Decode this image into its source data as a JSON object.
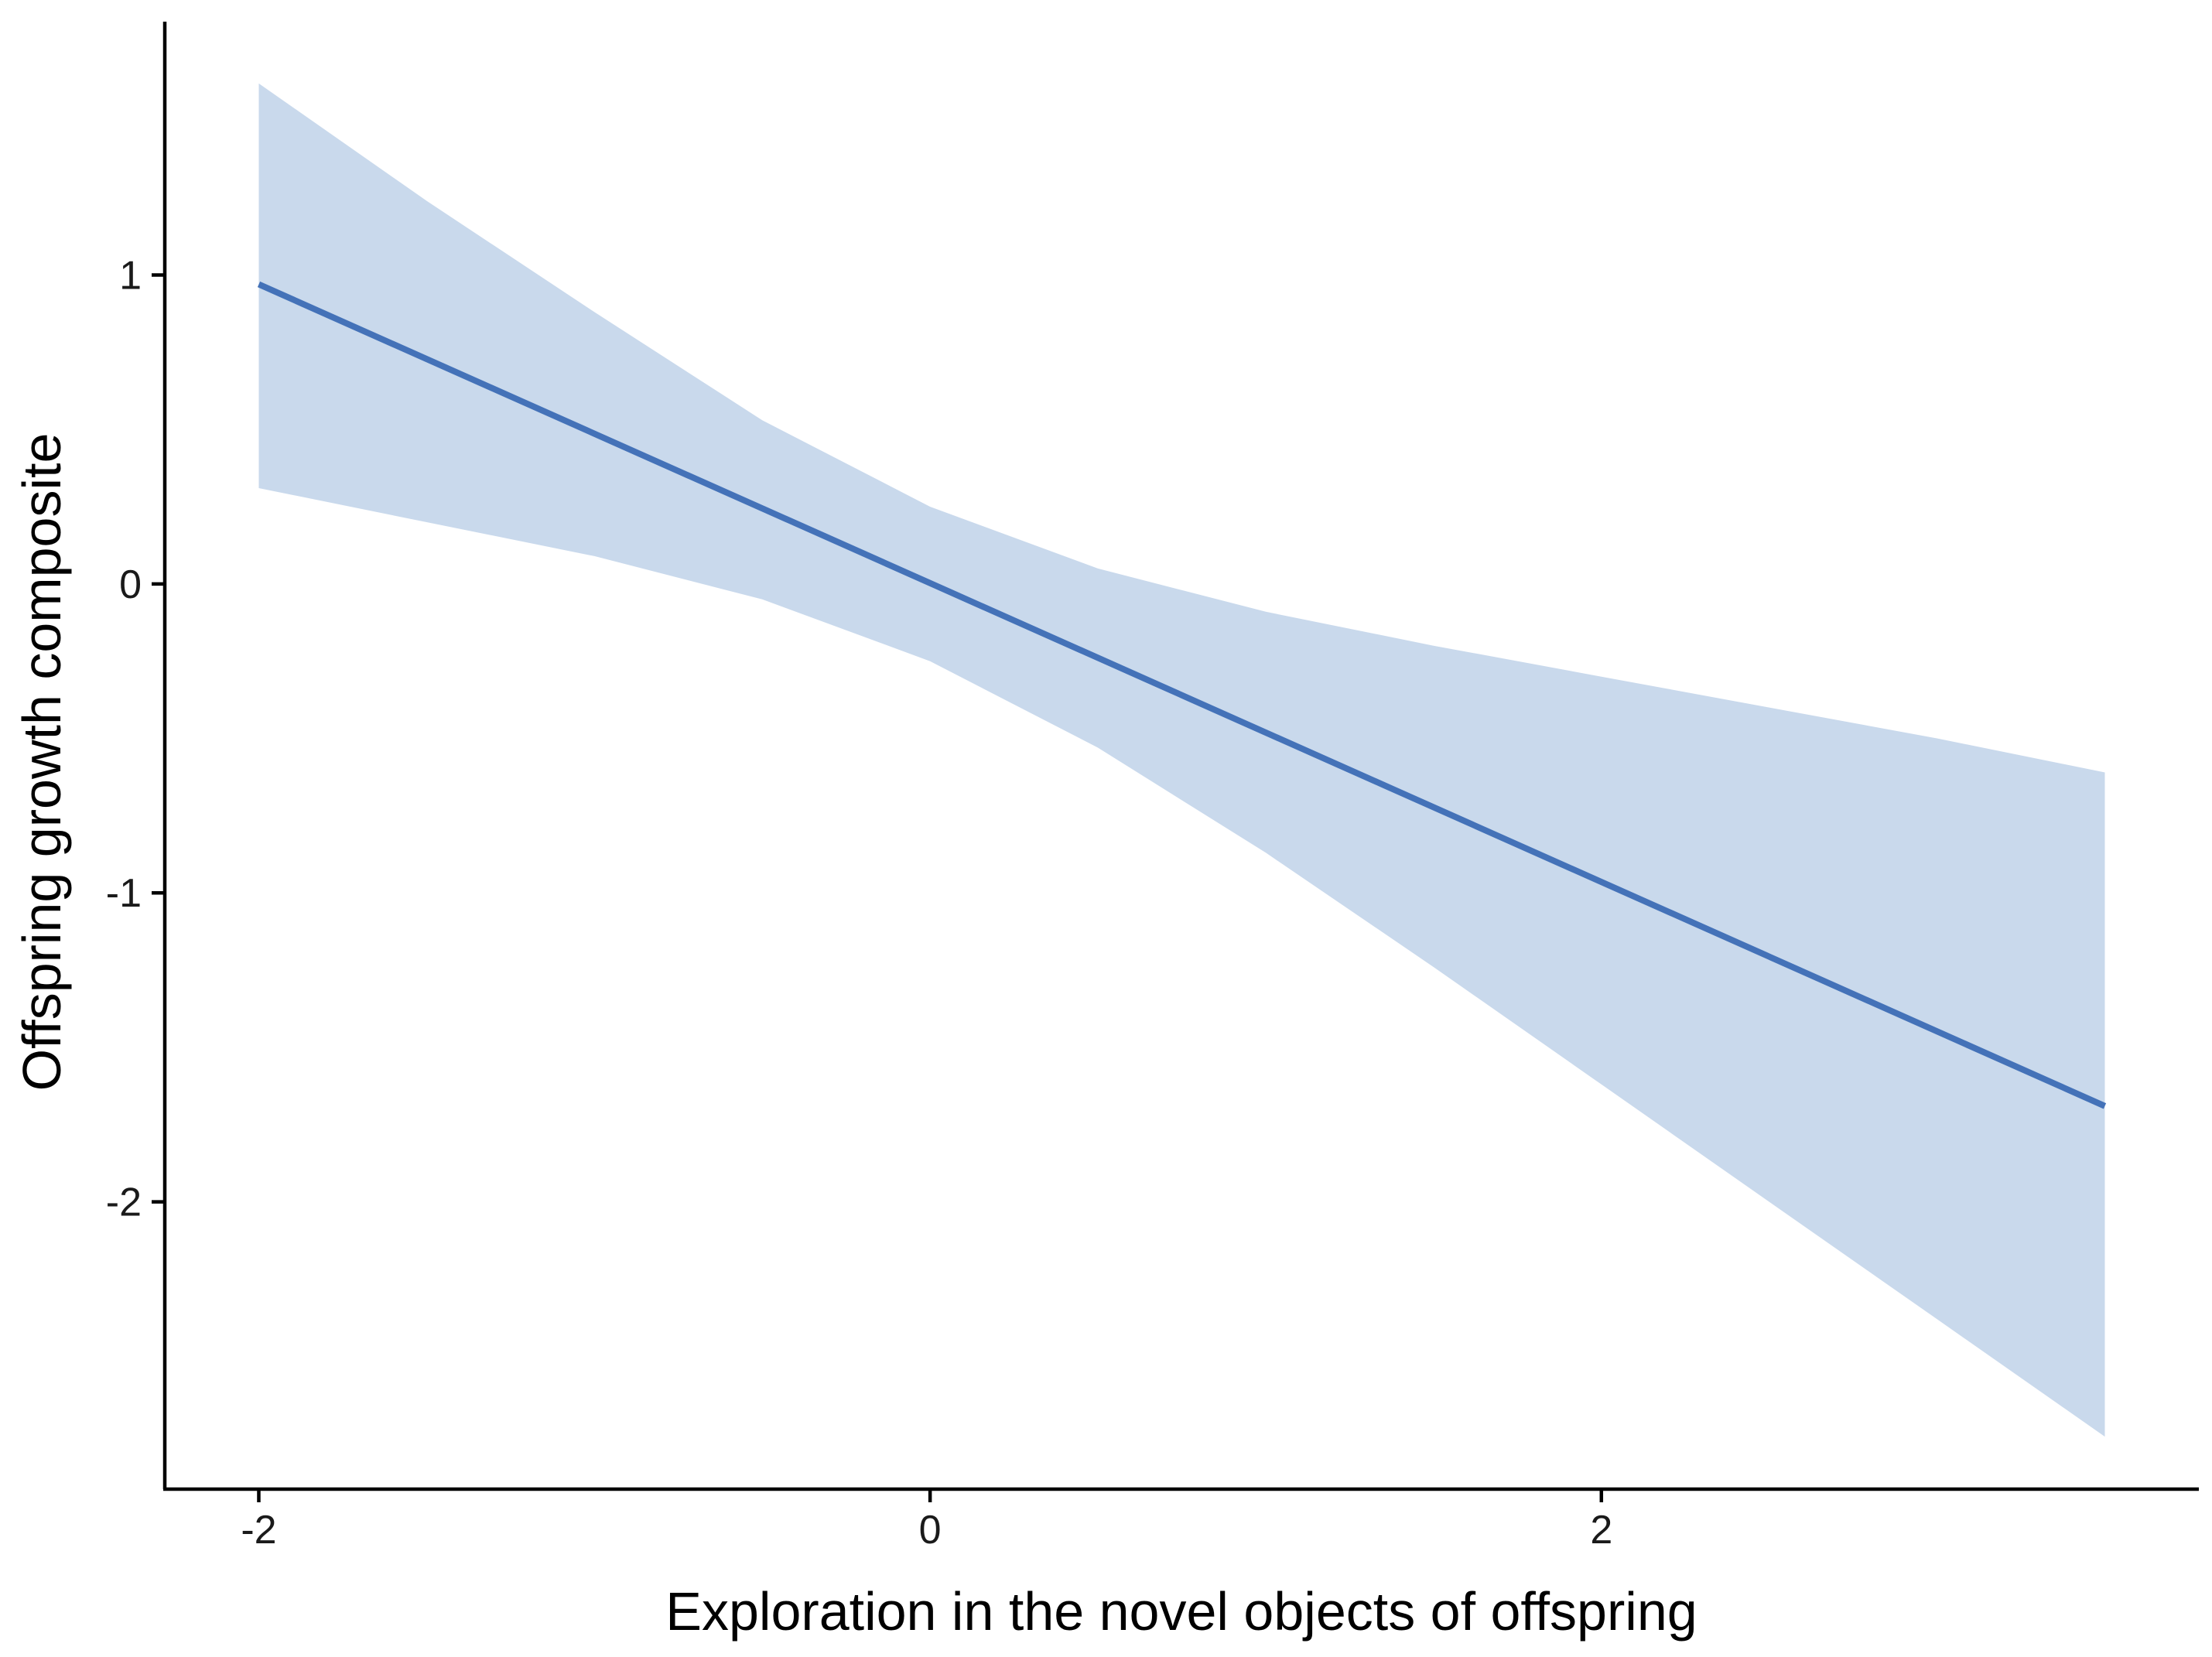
{
  "chart_data": {
    "type": "line",
    "xlabel": "Exploration in the novel objects of offspring",
    "ylabel": "Offspring growth composite",
    "xlim": [
      -2.28,
      3.78
    ],
    "ylim": [
      -2.93,
      1.82
    ],
    "x_ticks": [
      -2,
      0,
      2
    ],
    "x_tick_labels": [
      "-2",
      "0",
      "2"
    ],
    "y_ticks": [
      -2,
      -1,
      0,
      1
    ],
    "y_tick_labels": [
      "-2",
      "-1",
      "0",
      "1"
    ],
    "grid": false,
    "legend": "none",
    "line_color": "#4472b8",
    "ribbon_color": "#c9d9ec",
    "axis_color": "#000000",
    "fit_line": {
      "x": [
        -2.0,
        3.5
      ],
      "y": [
        0.97,
        -1.69
      ]
    },
    "confidence_band": {
      "x": [
        -2.0,
        -1.5,
        -1.0,
        -0.5,
        0.0,
        0.5,
        1.0,
        1.5,
        2.0,
        2.5,
        3.0,
        3.5
      ],
      "upper": [
        1.62,
        1.24,
        0.88,
        0.53,
        0.25,
        0.05,
        -0.09,
        -0.2,
        -0.3,
        -0.4,
        -0.5,
        -0.61
      ],
      "lower": [
        0.31,
        0.2,
        0.09,
        -0.05,
        -0.25,
        -0.53,
        -0.87,
        -1.24,
        -1.62,
        -2.0,
        -2.38,
        -2.76
      ]
    }
  }
}
